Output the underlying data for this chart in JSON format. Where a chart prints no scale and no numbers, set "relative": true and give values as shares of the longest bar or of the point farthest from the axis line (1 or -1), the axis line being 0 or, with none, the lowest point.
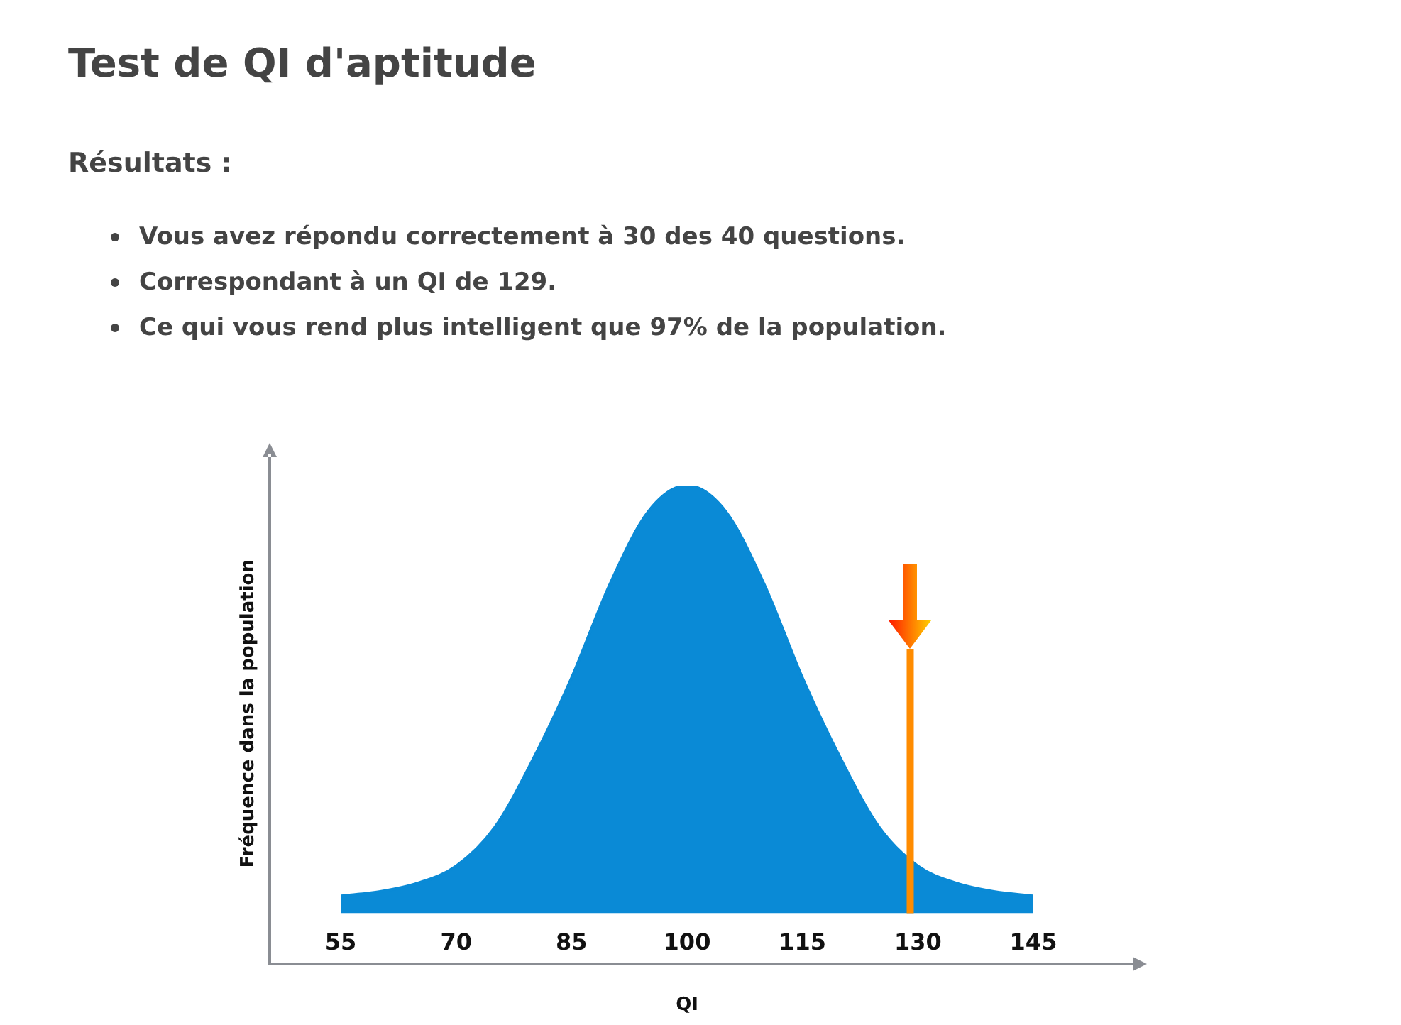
{
  "chart_data": {
    "type": "area",
    "title": "Test de QI d'aptitude",
    "subtitle": "Résultats :",
    "annotations": [
      "Vous avez répondu correctement à 30 des 40 questions.",
      "Correspondant à un QI de 129.",
      "Ce qui vous rend plus intelligent que 97% de la population."
    ],
    "xlabel": "QI",
    "ylabel": "Fréquence dans la population",
    "relative": true,
    "x": [
      55,
      60,
      65,
      70,
      75,
      80,
      85,
      90,
      95,
      100,
      105,
      110,
      115,
      120,
      125,
      130,
      135,
      140,
      145
    ],
    "series": [
      {
        "color": "#0a8ad6",
        "values": [
          0.04,
          0.05,
          0.07,
          0.11,
          0.2,
          0.36,
          0.55,
          0.77,
          0.94,
          1,
          0.94,
          0.77,
          0.55,
          0.36,
          0.2,
          0.11,
          0.07,
          0.05,
          0.04
        ]
      }
    ],
    "xlim": [
      55,
      145
    ],
    "xticks": [
      55,
      70,
      85,
      100,
      115,
      130,
      145
    ],
    "ref_lines": [
      {
        "axis": "x",
        "value": 129,
        "color": "#ff8c00"
      }
    ],
    "grid": false,
    "legend": false
  }
}
